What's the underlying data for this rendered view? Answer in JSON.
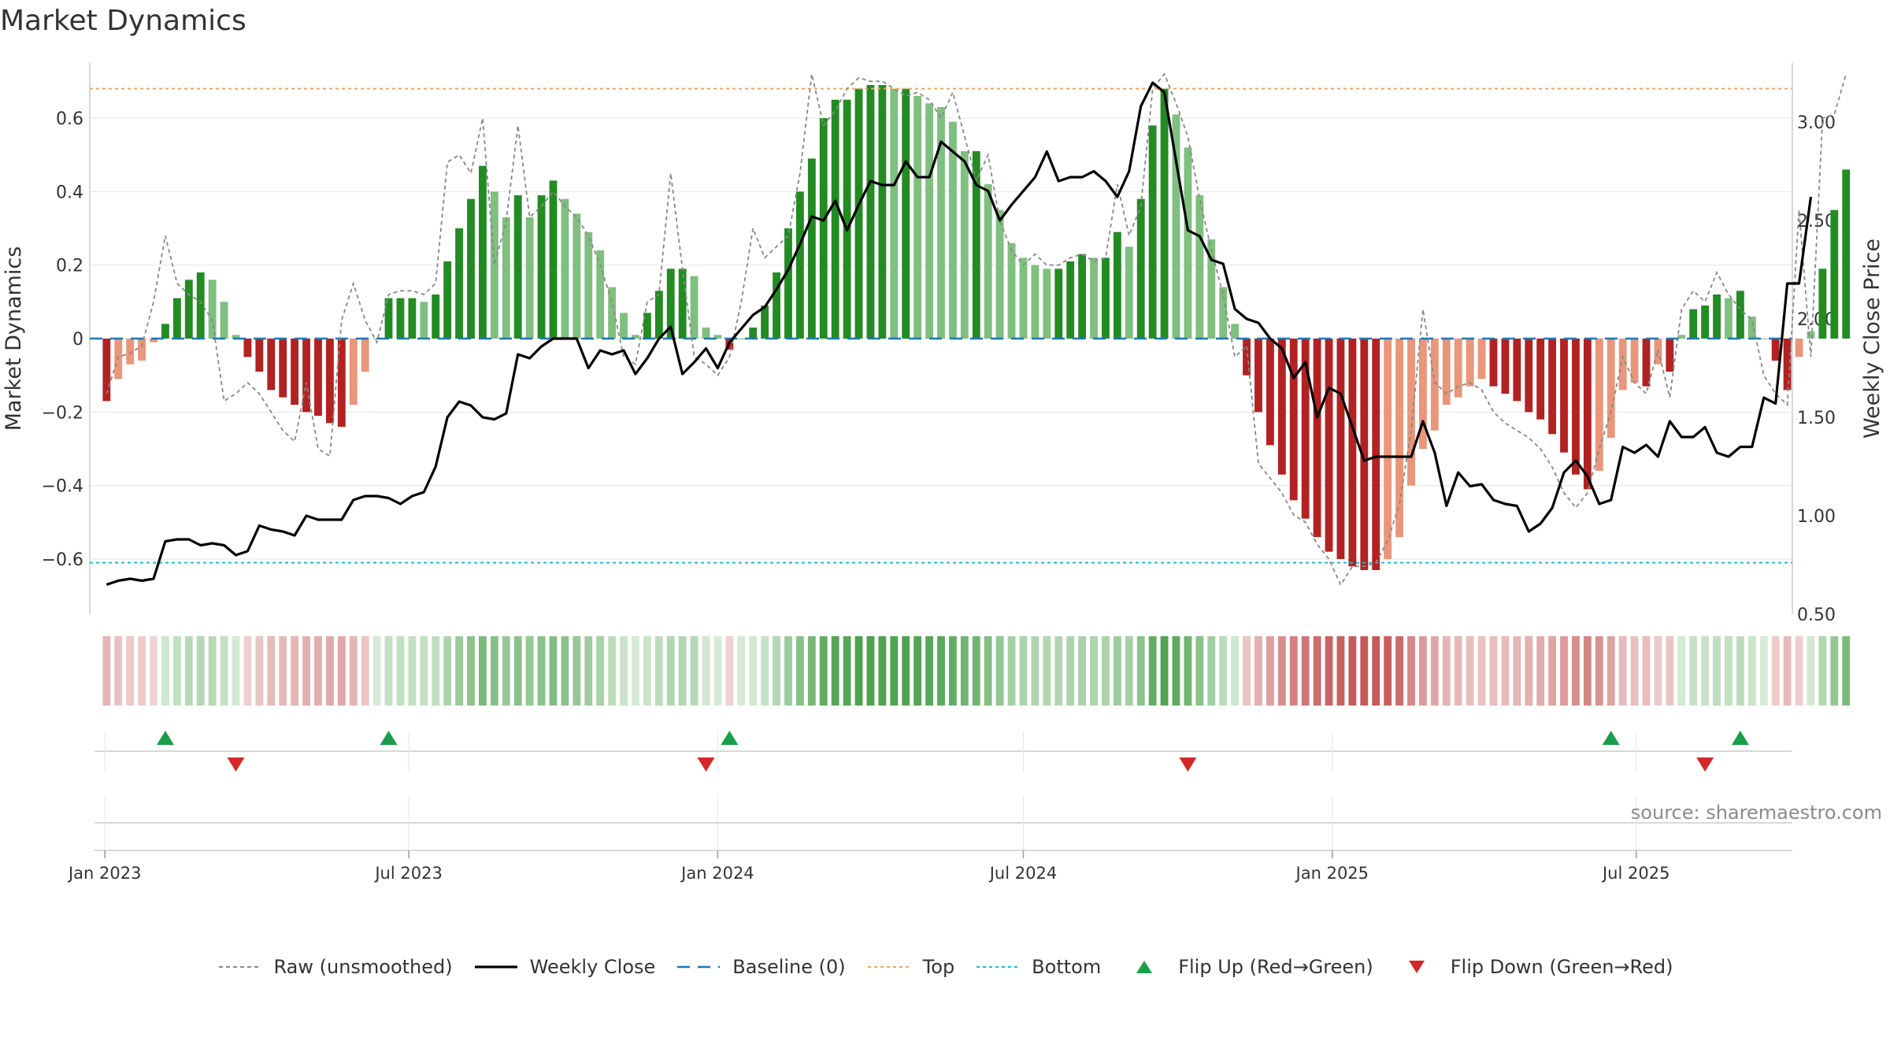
{
  "title": "Market Dynamics",
  "source": "source: sharemaestro.com",
  "colors": {
    "strong_green": "#228b22",
    "light_green": "#7fbf7f",
    "strong_red": "#b22222",
    "light_red": "#e9967a",
    "raw": "#888888",
    "close": "#000000",
    "baseline": "#1f77b4",
    "top": "#f4a460",
    "bottom": "#17becf",
    "flip_up": "#1a9e4a",
    "flip_down": "#d62728"
  },
  "legend": [
    {
      "key": "raw",
      "label": "Raw (unsmoothed)",
      "style": "dashed-gray"
    },
    {
      "key": "close",
      "label": "Weekly Close",
      "style": "solid-black"
    },
    {
      "key": "baseline",
      "label": "Baseline (0)",
      "style": "dashed-blue"
    },
    {
      "key": "top",
      "label": "Top",
      "style": "dotted-orange"
    },
    {
      "key": "bottom",
      "label": "Bottom",
      "style": "dotted-cyan"
    },
    {
      "key": "flip_up",
      "label": "Flip Up (Red→Green)",
      "style": "triangle-up"
    },
    {
      "key": "flip_down",
      "label": "Flip Down (Green→Red)",
      "style": "triangle-down"
    }
  ],
  "chart_data": {
    "type": "bar",
    "title": "Market Dynamics",
    "ylabel_left": "Market Dynamics",
    "ylabel_right": "Weekly Close Price",
    "ylim_left": [
      -0.75,
      0.75
    ],
    "ylim_right": [
      0.5,
      3.3
    ],
    "left_ticks": [
      0.6,
      0.4,
      0.2,
      0,
      -0.2,
      -0.4,
      -0.6
    ],
    "left_tick_labels": [
      "0.6",
      "0.4",
      "0.2",
      "0",
      "−0.2",
      "−0.4",
      "−0.6"
    ],
    "right_ticks": [
      3.0,
      2.5,
      2.0,
      1.5,
      1.0,
      0.5
    ],
    "right_tick_labels": [
      "3.00",
      "2.50",
      "2.00",
      "1.50",
      "1.00",
      "0.50"
    ],
    "x_start": "2023-01-02",
    "x_end": "2025-09-29",
    "week_step_days": 7,
    "x_ticks": [
      "2023-01-01",
      "2023-07-01",
      "2024-01-01",
      "2024-07-01",
      "2025-01-01",
      "2025-07-01"
    ],
    "x_tick_labels": [
      "Jan 2023",
      "Jul 2023",
      "Jan 2024",
      "Jul 2024",
      "Jan 2025",
      "Jul 2025"
    ],
    "top_level": 0.68,
    "bottom_level": -0.61,
    "baseline": 0,
    "dynamics": [
      -0.17,
      -0.11,
      -0.07,
      -0.06,
      -0.01,
      0.04,
      0.11,
      0.16,
      0.18,
      0.16,
      0.1,
      0.01,
      -0.05,
      -0.09,
      -0.14,
      -0.16,
      -0.18,
      -0.2,
      -0.21,
      -0.23,
      -0.24,
      -0.18,
      -0.09,
      0.0,
      0.11,
      0.11,
      0.11,
      0.1,
      0.12,
      0.21,
      0.3,
      0.38,
      0.47,
      0.4,
      0.33,
      0.39,
      0.33,
      0.39,
      0.43,
      0.38,
      0.34,
      0.29,
      0.24,
      0.14,
      0.07,
      0.01,
      0.07,
      0.13,
      0.19,
      0.19,
      0.17,
      0.03,
      0.01,
      -0.03,
      0.0,
      0.03,
      0.09,
      0.18,
      0.3,
      0.4,
      0.49,
      0.6,
      0.65,
      0.65,
      0.68,
      0.69,
      0.69,
      0.68,
      0.68,
      0.66,
      0.64,
      0.63,
      0.59,
      0.51,
      0.51,
      0.42,
      0.35,
      0.26,
      0.22,
      0.2,
      0.19,
      0.19,
      0.21,
      0.23,
      0.22,
      0.22,
      0.29,
      0.25,
      0.38,
      0.58,
      0.68,
      0.61,
      0.52,
      0.39,
      0.27,
      0.14,
      0.04,
      -0.1,
      -0.2,
      -0.29,
      -0.37,
      -0.44,
      -0.49,
      -0.54,
      -0.58,
      -0.6,
      -0.62,
      -0.63,
      -0.63,
      -0.6,
      -0.54,
      -0.4,
      -0.3,
      -0.25,
      -0.18,
      -0.16,
      -0.13,
      -0.11,
      -0.13,
      -0.15,
      -0.17,
      -0.2,
      -0.22,
      -0.26,
      -0.31,
      -0.37,
      -0.41,
      -0.36,
      -0.27,
      -0.14,
      -0.12,
      -0.13,
      -0.07,
      -0.09,
      0.01,
      0.08,
      0.09,
      0.12,
      0.11,
      0.13,
      0.06,
      0.0,
      -0.06,
      -0.14,
      -0.05,
      0.02,
      0.19,
      0.35,
      0.46
    ],
    "raw": [
      -0.15,
      -0.05,
      -0.04,
      -0.02,
      0.1,
      0.28,
      0.15,
      0.12,
      0.1,
      0.05,
      -0.17,
      -0.15,
      -0.12,
      -0.15,
      -0.2,
      -0.25,
      -0.28,
      -0.12,
      -0.3,
      -0.32,
      0.05,
      0.15,
      0.05,
      -0.01,
      0.12,
      0.13,
      0.13,
      0.12,
      0.15,
      0.48,
      0.5,
      0.45,
      0.6,
      0.2,
      0.32,
      0.58,
      0.33,
      0.36,
      0.4,
      0.36,
      0.33,
      0.28,
      0.2,
      0.1,
      -0.05,
      -0.07,
      0.1,
      0.12,
      0.45,
      0.19,
      -0.05,
      -0.07,
      -0.1,
      -0.05,
      0.1,
      0.3,
      0.22,
      0.25,
      0.28,
      0.45,
      0.72,
      0.58,
      0.62,
      0.68,
      0.71,
      0.7,
      0.7,
      0.68,
      0.66,
      0.67,
      0.65,
      0.6,
      0.67,
      0.55,
      0.43,
      0.5,
      0.32,
      0.24,
      0.2,
      0.23,
      0.2,
      0.2,
      0.22,
      0.23,
      0.21,
      0.22,
      0.42,
      0.28,
      0.36,
      0.68,
      0.72,
      0.64,
      0.55,
      0.38,
      0.24,
      0.12,
      -0.05,
      -0.02,
      -0.34,
      -0.38,
      -0.42,
      -0.48,
      -0.5,
      -0.56,
      -0.6,
      -0.67,
      -0.62,
      -0.62,
      -0.61,
      -0.55,
      -0.45,
      -0.25,
      0.08,
      -0.12,
      -0.15,
      -0.13,
      -0.12,
      -0.14,
      -0.2,
      -0.23,
      -0.25,
      -0.27,
      -0.3,
      -0.35,
      -0.42,
      -0.46,
      -0.42,
      -0.3,
      -0.2,
      -0.05,
      -0.12,
      -0.15,
      -0.03,
      -0.16,
      0.08,
      0.13,
      0.1,
      0.18,
      0.12,
      0.08,
      0.05,
      -0.1,
      -0.15,
      -0.18,
      0.35,
      -0.05,
      0.6,
      0.61,
      0.72
    ],
    "weekly_close": [
      0.65,
      0.67,
      0.68,
      0.67,
      0.68,
      0.87,
      0.88,
      0.88,
      0.85,
      0.86,
      0.85,
      0.8,
      0.82,
      0.95,
      0.93,
      0.92,
      0.9,
      1.0,
      0.98,
      0.98,
      0.98,
      1.08,
      1.1,
      1.1,
      1.09,
      1.06,
      1.1,
      1.12,
      1.25,
      1.5,
      1.58,
      1.56,
      1.5,
      1.49,
      1.52,
      1.82,
      1.8,
      1.86,
      1.9,
      1.9,
      1.9,
      1.75,
      1.84,
      1.82,
      1.84,
      1.72,
      1.8,
      1.9,
      1.96,
      1.72,
      1.78,
      1.85,
      1.75,
      1.88,
      1.95,
      2.02,
      2.06,
      2.15,
      2.25,
      2.38,
      2.52,
      2.5,
      2.6,
      2.45,
      2.58,
      2.7,
      2.68,
      2.68,
      2.8,
      2.72,
      2.72,
      2.9,
      2.85,
      2.8,
      2.68,
      2.65,
      2.5,
      2.58,
      2.65,
      2.72,
      2.85,
      2.7,
      2.72,
      2.72,
      2.75,
      2.7,
      2.62,
      2.75,
      3.08,
      3.2,
      3.15,
      2.8,
      2.45,
      2.42,
      2.3,
      2.28,
      2.05,
      2.0,
      1.98,
      1.9,
      1.85,
      1.7,
      1.78,
      1.5,
      1.65,
      1.62,
      1.45,
      1.28,
      1.3,
      1.3,
      1.3,
      1.3,
      1.48,
      1.32,
      1.05,
      1.22,
      1.15,
      1.16,
      1.08,
      1.06,
      1.05,
      0.92,
      0.96,
      1.04,
      1.22,
      1.28,
      1.2,
      1.06,
      1.08,
      1.35,
      1.32,
      1.36,
      1.3,
      1.48,
      1.4,
      1.4,
      1.45,
      1.32,
      1.3,
      1.35,
      1.35,
      1.6,
      1.57,
      2.18,
      2.18,
      2.62
    ],
    "flips_up": [
      "2023-02-06",
      "2023-06-19",
      "2024-01-08",
      "2025-06-16",
      "2025-09-01"
    ],
    "flips_down": [
      "2023-03-20",
      "2023-12-25",
      "2024-10-07",
      "2025-08-11"
    ]
  }
}
